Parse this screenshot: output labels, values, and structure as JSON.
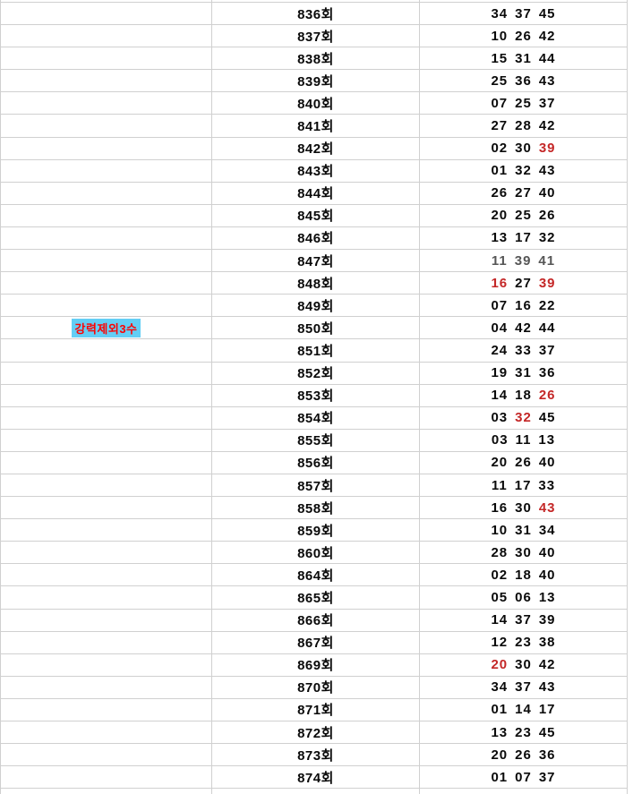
{
  "table": {
    "exclude_label": {
      "text": "강력제외3수",
      "text_color": "#ff0000",
      "bg_color": "#63cef5",
      "row_round": "850회"
    },
    "colors": {
      "border": "#d0d0d0",
      "number_default": "#0a0a0a",
      "number_muted": "#565656",
      "number_highlight": "#c42727",
      "background": "#ffffff"
    },
    "rows": [
      {
        "round": "836회",
        "nums": [
          "34",
          "37",
          "45"
        ],
        "c": [
          "k",
          "k",
          "k"
        ],
        "label": false
      },
      {
        "round": "837회",
        "nums": [
          "10",
          "26",
          "42"
        ],
        "c": [
          "k",
          "k",
          "k"
        ],
        "label": false
      },
      {
        "round": "838회",
        "nums": [
          "15",
          "31",
          "44"
        ],
        "c": [
          "k",
          "k",
          "k"
        ],
        "label": false
      },
      {
        "round": "839회",
        "nums": [
          "25",
          "36",
          "43"
        ],
        "c": [
          "k",
          "k",
          "k"
        ],
        "label": false
      },
      {
        "round": "840회",
        "nums": [
          "07",
          "25",
          "37"
        ],
        "c": [
          "k",
          "k",
          "k"
        ],
        "label": false
      },
      {
        "round": "841회",
        "nums": [
          "27",
          "28",
          "42"
        ],
        "c": [
          "k",
          "k",
          "k"
        ],
        "label": false
      },
      {
        "round": "842회",
        "nums": [
          "02",
          "30",
          "39"
        ],
        "c": [
          "k",
          "k",
          "r"
        ],
        "label": false
      },
      {
        "round": "843회",
        "nums": [
          "01",
          "32",
          "43"
        ],
        "c": [
          "k",
          "k",
          "k"
        ],
        "label": false
      },
      {
        "round": "844회",
        "nums": [
          "26",
          "27",
          "40"
        ],
        "c": [
          "k",
          "k",
          "k"
        ],
        "label": false
      },
      {
        "round": "845회",
        "nums": [
          "20",
          "25",
          "26"
        ],
        "c": [
          "k",
          "k",
          "k"
        ],
        "label": false
      },
      {
        "round": "846회",
        "nums": [
          "13",
          "17",
          "32"
        ],
        "c": [
          "k",
          "k",
          "k"
        ],
        "label": false
      },
      {
        "round": "847회",
        "nums": [
          "11",
          "39",
          "41"
        ],
        "c": [
          "g",
          "g",
          "g"
        ],
        "label": false
      },
      {
        "round": "848회",
        "nums": [
          "16",
          "27",
          "39"
        ],
        "c": [
          "r",
          "k",
          "r"
        ],
        "label": false
      },
      {
        "round": "849회",
        "nums": [
          "07",
          "16",
          "22"
        ],
        "c": [
          "k",
          "k",
          "k"
        ],
        "label": false
      },
      {
        "round": "850회",
        "nums": [
          "04",
          "42",
          "44"
        ],
        "c": [
          "k",
          "k",
          "k"
        ],
        "label": true
      },
      {
        "round": "851회",
        "nums": [
          "24",
          "33",
          "37"
        ],
        "c": [
          "k",
          "k",
          "k"
        ],
        "label": false
      },
      {
        "round": "852회",
        "nums": [
          "19",
          "31",
          "36"
        ],
        "c": [
          "k",
          "k",
          "k"
        ],
        "label": false
      },
      {
        "round": "853회",
        "nums": [
          "14",
          "18",
          "26"
        ],
        "c": [
          "k",
          "k",
          "r"
        ],
        "label": false
      },
      {
        "round": "854회",
        "nums": [
          "03",
          "32",
          "45"
        ],
        "c": [
          "k",
          "r",
          "k"
        ],
        "label": false
      },
      {
        "round": "855회",
        "nums": [
          "03",
          "11",
          "13"
        ],
        "c": [
          "k",
          "k",
          "k"
        ],
        "label": false
      },
      {
        "round": "856회",
        "nums": [
          "20",
          "26",
          "40"
        ],
        "c": [
          "k",
          "k",
          "k"
        ],
        "label": false
      },
      {
        "round": "857회",
        "nums": [
          "11",
          "17",
          "33"
        ],
        "c": [
          "k",
          "k",
          "k"
        ],
        "label": false
      },
      {
        "round": "858회",
        "nums": [
          "16",
          "30",
          "43"
        ],
        "c": [
          "k",
          "k",
          "r"
        ],
        "label": false
      },
      {
        "round": "859회",
        "nums": [
          "10",
          "31",
          "34"
        ],
        "c": [
          "k",
          "k",
          "k"
        ],
        "label": false
      },
      {
        "round": "860회",
        "nums": [
          "28",
          "30",
          "40"
        ],
        "c": [
          "k",
          "k",
          "k"
        ],
        "label": false
      },
      {
        "round": "864회",
        "nums": [
          "02",
          "18",
          "40"
        ],
        "c": [
          "k",
          "k",
          "k"
        ],
        "label": false
      },
      {
        "round": "865회",
        "nums": [
          "05",
          "06",
          "13"
        ],
        "c": [
          "k",
          "k",
          "k"
        ],
        "label": false
      },
      {
        "round": "866회",
        "nums": [
          "14",
          "37",
          "39"
        ],
        "c": [
          "k",
          "k",
          "k"
        ],
        "label": false
      },
      {
        "round": "867회",
        "nums": [
          "12",
          "23",
          "38"
        ],
        "c": [
          "k",
          "k",
          "k"
        ],
        "label": false
      },
      {
        "round": "869회",
        "nums": [
          "20",
          "30",
          "42"
        ],
        "c": [
          "r",
          "k",
          "k"
        ],
        "label": false
      },
      {
        "round": "870회",
        "nums": [
          "34",
          "37",
          "43"
        ],
        "c": [
          "k",
          "k",
          "k"
        ],
        "label": false
      },
      {
        "round": "871회",
        "nums": [
          "01",
          "14",
          "17"
        ],
        "c": [
          "k",
          "k",
          "k"
        ],
        "label": false
      },
      {
        "round": "872회",
        "nums": [
          "13",
          "23",
          "45"
        ],
        "c": [
          "k",
          "k",
          "k"
        ],
        "label": false
      },
      {
        "round": "873회",
        "nums": [
          "20",
          "26",
          "36"
        ],
        "c": [
          "k",
          "k",
          "k"
        ],
        "label": false
      },
      {
        "round": "874회",
        "nums": [
          "01",
          "07",
          "37"
        ],
        "c": [
          "k",
          "k",
          "k"
        ],
        "label": false
      }
    ]
  }
}
